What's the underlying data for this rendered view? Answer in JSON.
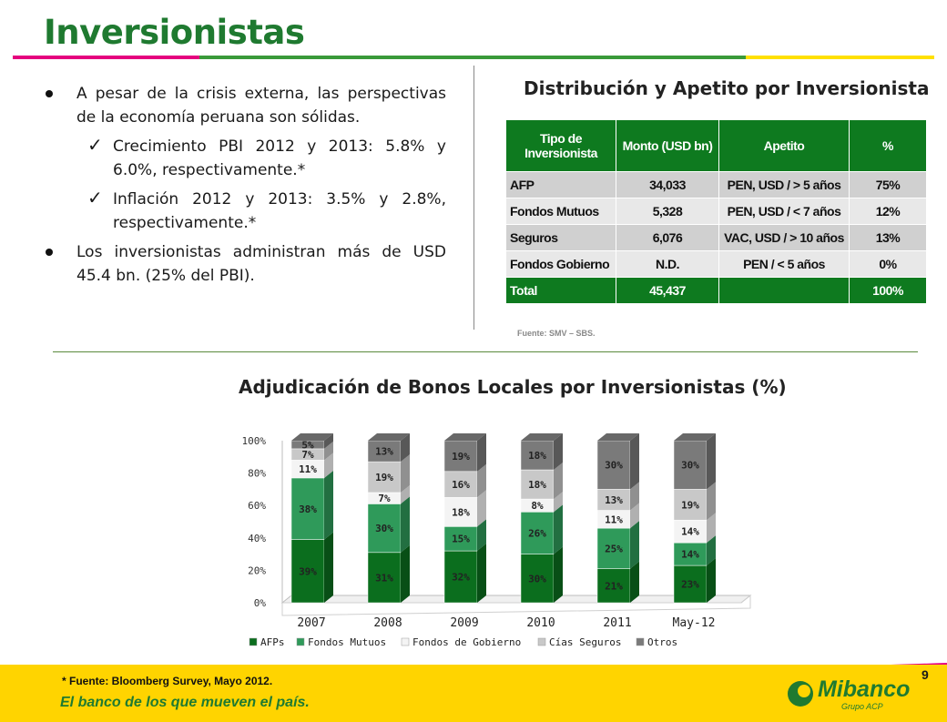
{
  "page": {
    "title": "Inversionistas",
    "page_number": "9"
  },
  "bullets": [
    {
      "text": "A pesar de la crisis externa, las perspectivas de la economía peruana son sólidas."
    },
    {
      "text": "Crecimiento PBI 2012 y 2013: 5.8% y 6.0%, respectivamente.*"
    },
    {
      "text": "Inflación 2012 y 2013: 3.5% y 2.8%, respectivamente.*"
    },
    {
      "text": "Los inversionistas administran más de USD 45.4 bn. (25% del PBI)."
    }
  ],
  "table": {
    "title": "Distribución y Apetito por Inversionista",
    "headers": [
      "Tipo de Inversionista",
      "Monto (USD bn)",
      "Apetito",
      "%"
    ],
    "rows": [
      [
        "AFP",
        "34,033",
        "PEN, USD / > 5 años",
        "75%"
      ],
      [
        "Fondos Mutuos",
        "5,328",
        "PEN, USD / < 7 años",
        "12%"
      ],
      [
        "Seguros",
        "6,076",
        "VAC, USD / > 10 años",
        "13%"
      ],
      [
        "Fondos Gobierno",
        "N.D.",
        "PEN / < 5 años",
        "0%"
      ]
    ],
    "total": [
      "Total",
      "45,437",
      "",
      "100%"
    ],
    "source": "Fuente: SMV – SBS."
  },
  "chart_data": {
    "type": "bar",
    "stacked": true,
    "title": "Adjudicación de Bonos Locales por Inversionistas (%)",
    "categories": [
      "2007",
      "2008",
      "2009",
      "2010",
      "2011",
      "May-12"
    ],
    "ylim": [
      0,
      100
    ],
    "yticks": [
      "0%",
      "20%",
      "40%",
      "60%",
      "80%",
      "100%"
    ],
    "legend_position": "bottom",
    "series": [
      {
        "name": "AFPs",
        "color": "#0b6e1e",
        "values": [
          39,
          31,
          32,
          30,
          21,
          23
        ]
      },
      {
        "name": "Fondos Mutuos",
        "color": "#2f9a5a",
        "values": [
          38,
          30,
          15,
          26,
          25,
          14
        ]
      },
      {
        "name": "Fondos de Gobierno",
        "color": "#f4f4f4",
        "values": [
          11,
          7,
          18,
          8,
          11,
          14
        ]
      },
      {
        "name": "Cías Seguros",
        "color": "#c8c8c8",
        "values": [
          7,
          19,
          16,
          18,
          13,
          19
        ]
      },
      {
        "name": "Otros",
        "color": "#7a7a7a",
        "values": [
          5,
          13,
          19,
          18,
          30,
          30
        ]
      }
    ]
  },
  "footer": {
    "note": "* Fuente: Bloomberg Survey, Mayo 2012.",
    "slogan": "El banco de los que mueven el país.",
    "logo_name": "Mibanco",
    "logo_sub": "Grupo ACP"
  }
}
